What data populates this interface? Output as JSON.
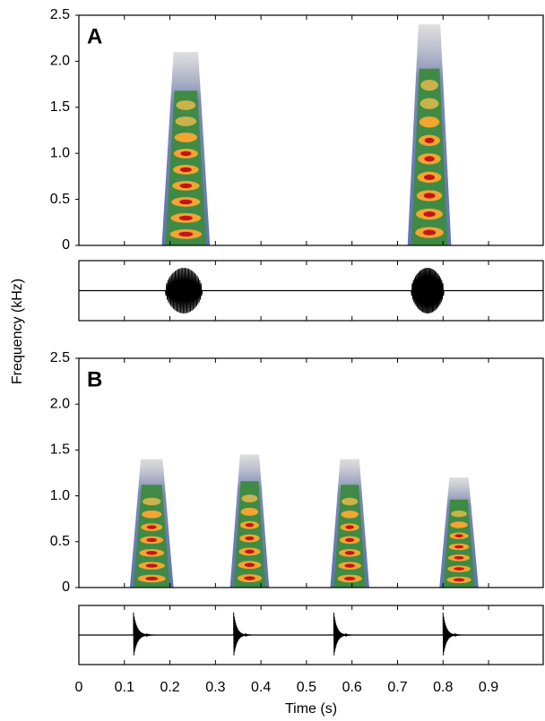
{
  "chart_data": {
    "type": "spectrogram",
    "ylabel": "Frequency (kHz)",
    "xlabel": "Time (s)",
    "xlim": [
      0,
      1.02
    ],
    "xticks": [
      0,
      0.1,
      0.2,
      0.3,
      0.4,
      0.5,
      0.6,
      0.7,
      0.8,
      0.9
    ],
    "ylim": [
      0,
      2.5
    ],
    "yticks": [
      0,
      0.5,
      {
        "value": 1,
        "label": "1.0"
      },
      1.5,
      {
        "value": 2,
        "label": "2.0"
      },
      2.5
    ],
    "panels": [
      {
        "label": "A",
        "calls": [
          {
            "start": 0.19,
            "end": 0.28,
            "top": 2.1
          },
          {
            "start": 0.73,
            "end": 0.81,
            "top": 2.4
          }
        ]
      },
      {
        "label": "B",
        "calls": [
          {
            "start": 0.12,
            "end": 0.2,
            "top": 1.4
          },
          {
            "start": 0.34,
            "end": 0.41,
            "top": 1.45
          },
          {
            "start": 0.56,
            "end": 0.63,
            "top": 1.4
          },
          {
            "start": 0.8,
            "end": 0.87,
            "top": 1.2
          }
        ]
      }
    ]
  }
}
